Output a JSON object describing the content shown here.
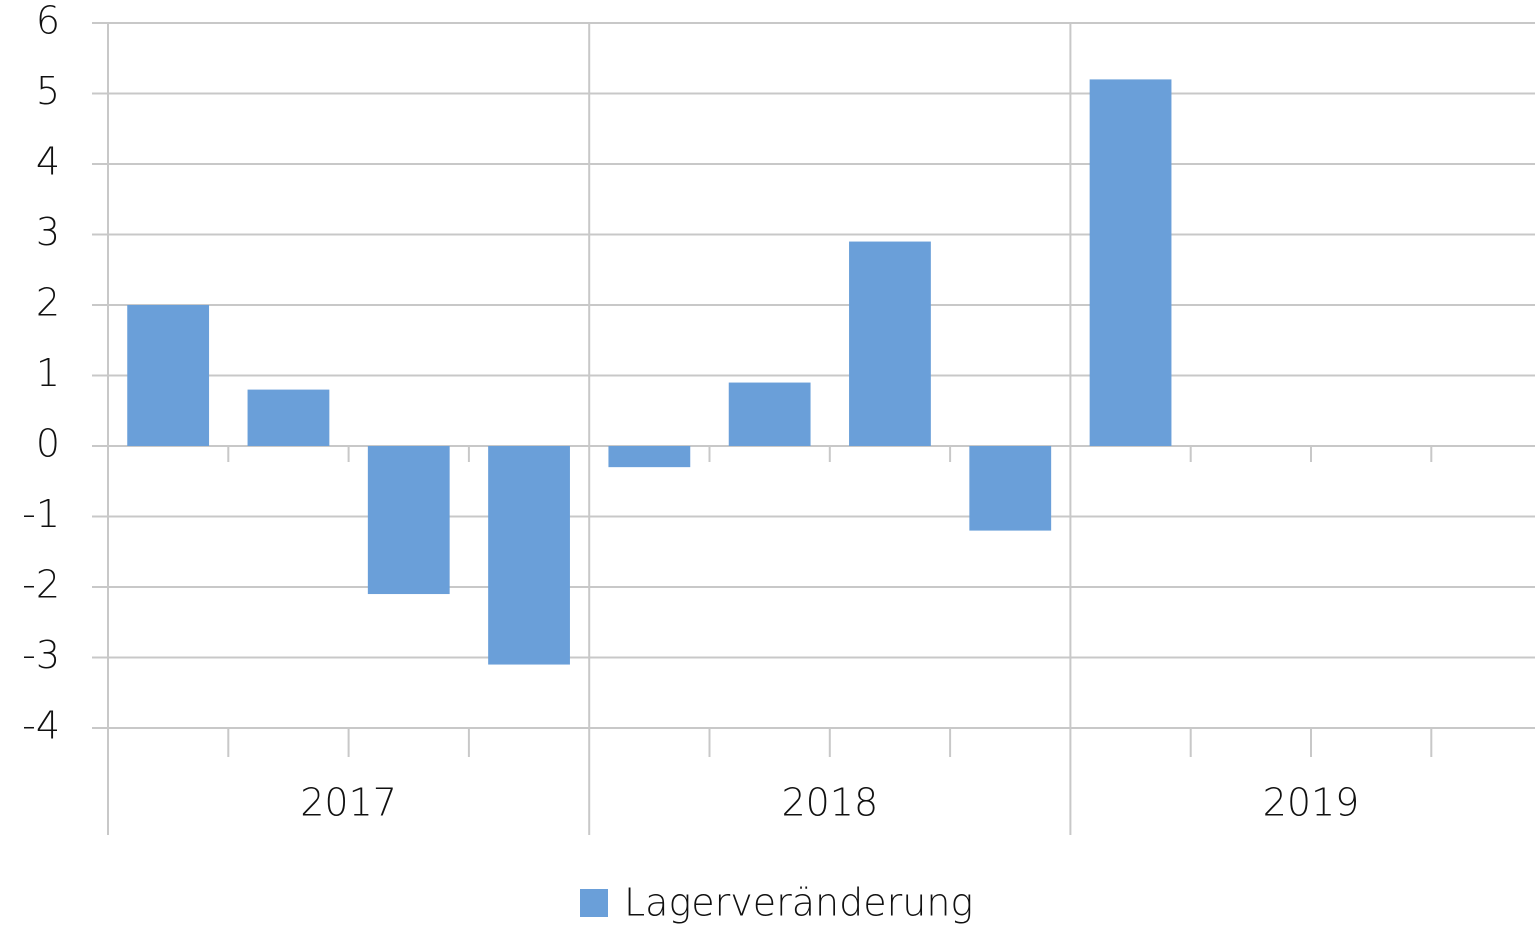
{
  "chart_data": {
    "type": "bar",
    "categories": [
      null,
      null,
      null,
      null,
      null,
      null,
      null,
      null,
      null,
      null,
      null,
      null
    ],
    "x_groups": [
      "2017",
      "2018",
      "2019"
    ],
    "series": [
      {
        "name": "Lagerveränderung",
        "color": "#6a9fd9",
        "values": [
          2.0,
          0.8,
          -2.1,
          -3.1,
          -0.3,
          0.9,
          2.9,
          -1.2,
          5.2,
          null,
          null,
          null
        ]
      }
    ],
    "ylim": [
      -4,
      6
    ],
    "yticks": [
      -4,
      -3,
      -2,
      -1,
      0,
      1,
      2,
      3,
      4,
      5,
      6
    ],
    "grid": true,
    "legend": "bottom"
  }
}
